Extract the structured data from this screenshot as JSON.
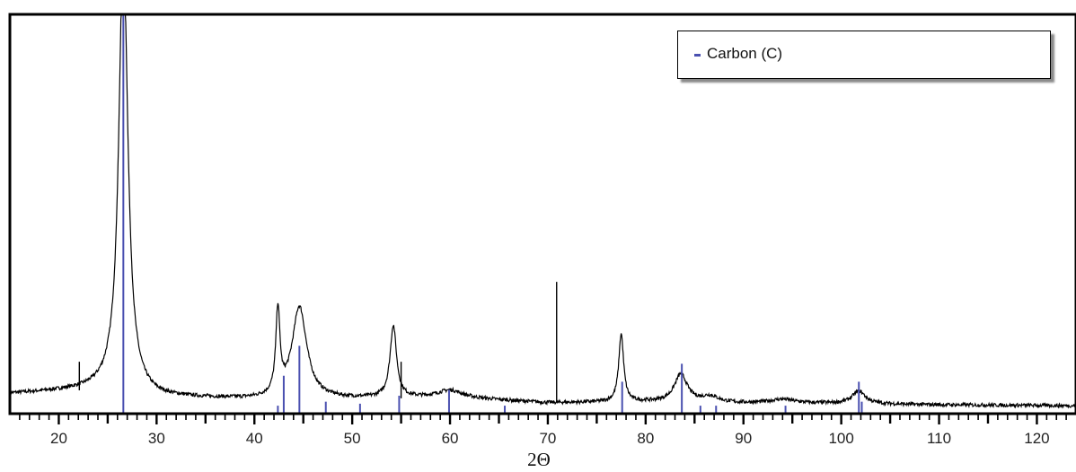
{
  "chart_data": {
    "type": "line",
    "xlabel": "2Θ",
    "ylabel": "",
    "xlim": [
      15,
      124
    ],
    "ylim": [
      0,
      100
    ],
    "x_ticks": [
      20,
      30,
      40,
      50,
      60,
      70,
      80,
      90,
      100,
      110,
      120
    ],
    "tick_labels": [
      "20",
      "30",
      "40",
      "50",
      "60",
      "70",
      "80",
      "90",
      "100",
      "110",
      "120"
    ],
    "grid": false,
    "legend_position": "top-right",
    "legend": [
      {
        "name": "Carbon (C)",
        "color": "#4a50b0"
      }
    ],
    "colors": {
      "pattern": "#000000",
      "reference": "#4a50b0"
    },
    "measured_pattern": {
      "color": "#000000",
      "baseline": [
        [
          15,
          5.0
        ],
        [
          25,
          6.2
        ],
        [
          30,
          4.1
        ],
        [
          40,
          3.5
        ],
        [
          50,
          3.7
        ],
        [
          60,
          4.0
        ],
        [
          70,
          2.7
        ],
        [
          80,
          2.9
        ],
        [
          90,
          2.6
        ],
        [
          100,
          2.5
        ],
        [
          110,
          2.2
        ],
        [
          124,
          2.0
        ]
      ],
      "peaks": [
        {
          "x": 26.6,
          "y": 112,
          "width": 0.55
        },
        {
          "x": 42.4,
          "y": 21,
          "width": 0.25
        },
        {
          "x": 44.6,
          "y": 23,
          "width": 0.9
        },
        {
          "x": 54.2,
          "y": 18,
          "width": 0.4
        },
        {
          "x": 60.0,
          "y": 1.8,
          "width": 1.5
        },
        {
          "x": 77.5,
          "y": 17,
          "width": 0.3
        },
        {
          "x": 83.6,
          "y": 7.0,
          "width": 0.8
        },
        {
          "x": 86.6,
          "y": 1.5,
          "width": 1.0
        },
        {
          "x": 94.0,
          "y": 1.0,
          "width": 1.5
        },
        {
          "x": 101.8,
          "y": 3.2,
          "width": 0.8
        }
      ],
      "spikes": [
        {
          "x": 22.1,
          "y": 13.0
        },
        {
          "x": 55.0,
          "y": 13.0
        },
        {
          "x": 70.9,
          "y": 33.0
        }
      ]
    },
    "series": [
      {
        "name": "Carbon (C)",
        "type": "reference_sticks",
        "color": "#4a50b0",
        "x": [
          26.6,
          42.4,
          43.0,
          44.6,
          47.3,
          50.8,
          54.8,
          59.9,
          65.6,
          77.6,
          83.7,
          85.6,
          87.2,
          94.3,
          101.8,
          102.1
        ],
        "y": [
          100,
          2,
          9.5,
          17,
          3,
          2.5,
          4.5,
          6,
          2,
          8,
          12.5,
          2,
          2,
          2,
          8,
          3
        ]
      }
    ]
  }
}
